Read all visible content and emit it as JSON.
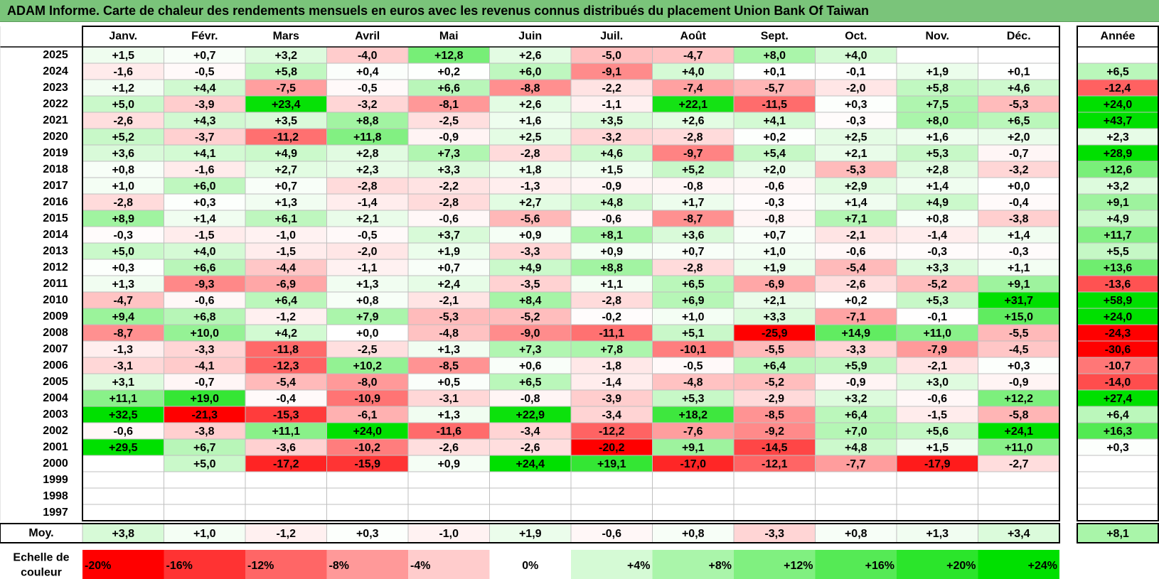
{
  "title": "ADAM Informe. Carte de chaleur des rendements mensuels en euros avec les revenus connus distribués du placement Union Bank Of Taiwan",
  "chart_data": {
    "type": "heatmap",
    "months": [
      "Janv.",
      "Févr.",
      "Mars",
      "Avril",
      "Mai",
      "Juin",
      "Juil.",
      "Août",
      "Sept.",
      "Oct.",
      "Nov.",
      "Déc."
    ],
    "year_header": "Année",
    "rows": [
      {
        "year": "2025",
        "values": [
          1.5,
          0.7,
          3.2,
          -4.0,
          12.8,
          2.6,
          -5.0,
          -4.7,
          8.0,
          4.0,
          null,
          null
        ],
        "annual": null
      },
      {
        "year": "2024",
        "values": [
          -1.6,
          -0.5,
          5.8,
          0.4,
          0.2,
          6.0,
          -9.1,
          4.0,
          0.1,
          -0.1,
          1.9,
          0.1
        ],
        "annual": 6.5
      },
      {
        "year": "2023",
        "values": [
          1.2,
          4.4,
          -7.5,
          -0.5,
          6.6,
          -8.8,
          -2.2,
          -7.4,
          -5.7,
          -2.0,
          5.8,
          4.6
        ],
        "annual": -12.4
      },
      {
        "year": "2022",
        "values": [
          5.0,
          -3.9,
          23.4,
          -3.2,
          -8.1,
          2.6,
          -1.1,
          22.1,
          -11.5,
          0.3,
          7.5,
          -5.3
        ],
        "annual": 24.0
      },
      {
        "year": "2021",
        "values": [
          -2.6,
          4.3,
          3.5,
          8.8,
          -2.5,
          1.6,
          3.5,
          2.6,
          4.1,
          -0.3,
          8.0,
          6.5
        ],
        "annual": 43.7
      },
      {
        "year": "2020",
        "values": [
          5.2,
          -3.7,
          -11.2,
          11.8,
          -0.9,
          2.5,
          -3.2,
          -2.8,
          0.2,
          2.5,
          1.6,
          2.0
        ],
        "annual": 2.3
      },
      {
        "year": "2019",
        "values": [
          3.6,
          4.1,
          4.9,
          2.8,
          7.3,
          -2.8,
          4.6,
          -9.7,
          5.4,
          2.1,
          5.3,
          -0.7
        ],
        "annual": 28.9
      },
      {
        "year": "2018",
        "values": [
          0.8,
          -1.6,
          2.7,
          2.3,
          3.3,
          1.8,
          1.5,
          5.2,
          2.0,
          -5.3,
          2.8,
          -3.2
        ],
        "annual": 12.6
      },
      {
        "year": "2017",
        "values": [
          1.0,
          6.0,
          0.7,
          -2.8,
          -2.2,
          -1.3,
          -0.9,
          -0.8,
          -0.6,
          2.9,
          1.4,
          0.0
        ],
        "annual": 3.2
      },
      {
        "year": "2016",
        "values": [
          -2.8,
          0.3,
          1.3,
          -1.4,
          -2.8,
          2.7,
          4.8,
          1.7,
          -0.3,
          1.4,
          4.9,
          -0.4
        ],
        "annual": 9.1
      },
      {
        "year": "2015",
        "values": [
          8.9,
          1.4,
          6.1,
          2.1,
          -0.6,
          -5.6,
          -0.6,
          -8.7,
          -0.8,
          7.1,
          0.8,
          -3.8
        ],
        "annual": 4.9
      },
      {
        "year": "2014",
        "values": [
          -0.3,
          -1.5,
          -1.0,
          -0.5,
          3.7,
          0.9,
          8.1,
          3.6,
          0.7,
          -2.1,
          -1.4,
          1.4
        ],
        "annual": 11.7
      },
      {
        "year": "2013",
        "values": [
          5.0,
          4.0,
          -1.5,
          -2.0,
          1.9,
          -3.3,
          0.9,
          0.7,
          1.0,
          -0.6,
          -0.3,
          -0.3
        ],
        "annual": 5.5
      },
      {
        "year": "2012",
        "values": [
          0.3,
          6.6,
          -4.4,
          -1.1,
          0.7,
          4.9,
          8.8,
          -2.8,
          1.9,
          -5.4,
          3.3,
          1.1
        ],
        "annual": 13.6
      },
      {
        "year": "2011",
        "values": [
          1.3,
          -9.3,
          -6.9,
          1.3,
          2.4,
          -3.5,
          1.1,
          6.5,
          -6.9,
          -2.6,
          -5.2,
          9.1
        ],
        "annual": -13.6
      },
      {
        "year": "2010",
        "values": [
          -4.7,
          -0.6,
          6.4,
          0.8,
          -2.1,
          8.4,
          -2.8,
          6.9,
          2.1,
          0.2,
          5.3,
          31.7
        ],
        "annual": 58.9
      },
      {
        "year": "2009",
        "values": [
          9.4,
          6.8,
          -1.2,
          7.9,
          -5.3,
          -5.2,
          -0.2,
          1.0,
          3.3,
          -7.1,
          -0.1,
          15.0
        ],
        "annual": 24.0
      },
      {
        "year": "2008",
        "values": [
          -8.7,
          10.0,
          4.2,
          0.0,
          -4.8,
          -9.0,
          -11.1,
          5.1,
          -25.9,
          14.9,
          11.0,
          -5.5
        ],
        "annual": -24.3
      },
      {
        "year": "2007",
        "values": [
          -1.3,
          -3.3,
          -11.8,
          -2.5,
          1.3,
          7.3,
          7.8,
          -10.1,
          -5.5,
          -3.3,
          -7.9,
          -4.5
        ],
        "annual": -30.6
      },
      {
        "year": "2006",
        "values": [
          -3.1,
          -4.1,
          -12.3,
          10.2,
          -8.5,
          0.6,
          -1.8,
          -0.5,
          6.4,
          5.9,
          -2.1,
          0.3
        ],
        "annual": -10.7
      },
      {
        "year": "2005",
        "values": [
          3.1,
          -0.7,
          -5.4,
          -8.0,
          0.5,
          6.5,
          -1.4,
          -4.8,
          -5.2,
          -0.9,
          3.0,
          -0.9
        ],
        "annual": -14.0
      },
      {
        "year": "2004",
        "values": [
          11.1,
          19.0,
          -0.4,
          -10.9,
          -3.1,
          -0.8,
          -3.9,
          5.3,
          -2.9,
          3.2,
          -0.6,
          12.2
        ],
        "annual": 27.4
      },
      {
        "year": "2003",
        "values": [
          32.5,
          -21.3,
          -15.3,
          -6.1,
          1.3,
          22.9,
          -3.4,
          18.2,
          -8.5,
          6.4,
          -1.5,
          -5.8
        ],
        "annual": 6.4
      },
      {
        "year": "2002",
        "values": [
          -0.6,
          -3.8,
          11.1,
          24.0,
          -11.6,
          -3.4,
          -12.2,
          -7.6,
          -9.2,
          7.0,
          5.6,
          24.1
        ],
        "annual": 16.3
      },
      {
        "year": "2001",
        "values": [
          29.5,
          6.7,
          -3.6,
          -10.2,
          -2.6,
          -2.6,
          -20.2,
          9.1,
          -14.5,
          4.8,
          1.5,
          11.0
        ],
        "annual": 0.3
      },
      {
        "year": "2000",
        "values": [
          null,
          5.0,
          -17.2,
          -15.9,
          0.9,
          24.4,
          19.1,
          -17.0,
          -12.1,
          -7.7,
          -17.9,
          -2.7
        ],
        "annual": null
      },
      {
        "year": "1999",
        "values": [
          null,
          null,
          null,
          null,
          null,
          null,
          null,
          null,
          null,
          null,
          null,
          null
        ],
        "annual": null
      },
      {
        "year": "1998",
        "values": [
          null,
          null,
          null,
          null,
          null,
          null,
          null,
          null,
          null,
          null,
          null,
          null
        ],
        "annual": null
      },
      {
        "year": "1997",
        "values": [
          null,
          null,
          null,
          null,
          null,
          null,
          null,
          null,
          null,
          null,
          null,
          null
        ],
        "annual": null
      }
    ],
    "average": {
      "label": "Moy.",
      "values": [
        3.8,
        1.0,
        -1.2,
        0.3,
        -1.0,
        1.9,
        -0.6,
        0.8,
        -3.3,
        0.8,
        1.3,
        3.4
      ],
      "annual": 8.1
    },
    "scale": {
      "label_line1": "Echelle de",
      "label_line2": "couleur",
      "steps": [
        {
          "label": "-20%",
          "value": -20
        },
        {
          "label": "-16%",
          "value": -16
        },
        {
          "label": "-12%",
          "value": -12
        },
        {
          "label": "-8%",
          "value": -8
        },
        {
          "label": "-4%",
          "value": -4
        },
        {
          "label": "0%",
          "value": 0
        },
        {
          "label": "+4%",
          "value": 4
        },
        {
          "label": "+8%",
          "value": 8
        },
        {
          "label": "+12%",
          "value": 12
        },
        {
          "label": "+16%",
          "value": 16
        },
        {
          "label": "+20%",
          "value": 20
        },
        {
          "label": "+24%",
          "value": 24
        }
      ]
    },
    "colors": {
      "negative": "#ff0000",
      "neutral": "#ffffff",
      "positive": "#00e000"
    }
  }
}
